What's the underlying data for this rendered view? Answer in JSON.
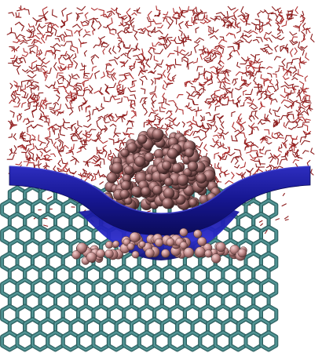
{
  "scene": {
    "description_colors": {
      "background": "#ffffff",
      "solvent": "#8b1a1a",
      "solvent_highlight": "#b03030",
      "lattice": "#3f7f7f",
      "lattice_highlight": "#6fb0b0",
      "interface": "#1a1a9a",
      "interface_highlight": "#3535c8",
      "interface_shadow": "#0c0c60",
      "cluster": "#8a5a5a",
      "cluster_highlight": "#d8a8a8",
      "cluster_shadow": "#4a2c2c"
    },
    "layers": [
      {
        "name": "solvent-layer"
      },
      {
        "name": "crystal-lattice"
      },
      {
        "name": "cluster-back"
      },
      {
        "name": "interface-sheet"
      },
      {
        "name": "cluster-front"
      }
    ]
  }
}
